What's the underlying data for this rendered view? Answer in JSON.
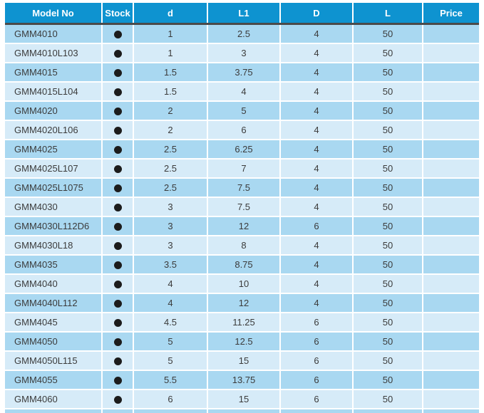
{
  "table": {
    "columns": [
      {
        "key": "model",
        "label": "Model No"
      },
      {
        "key": "stock",
        "label": "Stock"
      },
      {
        "key": "d",
        "label": "d"
      },
      {
        "key": "l1",
        "label": "L1"
      },
      {
        "key": "D",
        "label": "D"
      },
      {
        "key": "L",
        "label": "L"
      },
      {
        "key": "price",
        "label": "Price"
      }
    ],
    "stock_icon": {
      "name": "filled-circle",
      "meaning": "in-stock"
    },
    "rows": [
      {
        "model": "GMM4010",
        "stock": "in-stock",
        "d": "1",
        "l1": "2.5",
        "D": "4",
        "L": "50",
        "price": ""
      },
      {
        "model": "GMM4010L103",
        "stock": "in-stock",
        "d": "1",
        "l1": "3",
        "D": "4",
        "L": "50",
        "price": ""
      },
      {
        "model": "GMM4015",
        "stock": "in-stock",
        "d": "1.5",
        "l1": "3.75",
        "D": "4",
        "L": "50",
        "price": ""
      },
      {
        "model": "GMM4015L104",
        "stock": "in-stock",
        "d": "1.5",
        "l1": "4",
        "D": "4",
        "L": "50",
        "price": ""
      },
      {
        "model": "GMM4020",
        "stock": "in-stock",
        "d": "2",
        "l1": "5",
        "D": "4",
        "L": "50",
        "price": ""
      },
      {
        "model": "GMM4020L106",
        "stock": "in-stock",
        "d": "2",
        "l1": "6",
        "D": "4",
        "L": "50",
        "price": ""
      },
      {
        "model": "GMM4025",
        "stock": "in-stock",
        "d": "2.5",
        "l1": "6.25",
        "D": "4",
        "L": "50",
        "price": ""
      },
      {
        "model": "GMM4025L107",
        "stock": "in-stock",
        "d": "2.5",
        "l1": "7",
        "D": "4",
        "L": "50",
        "price": ""
      },
      {
        "model": "GMM4025L1075",
        "stock": "in-stock",
        "d": "2.5",
        "l1": "7.5",
        "D": "4",
        "L": "50",
        "price": ""
      },
      {
        "model": "GMM4030",
        "stock": "in-stock",
        "d": "3",
        "l1": "7.5",
        "D": "4",
        "L": "50",
        "price": ""
      },
      {
        "model": "GMM4030L112D6",
        "stock": "in-stock",
        "d": "3",
        "l1": "12",
        "D": "6",
        "L": "50",
        "price": ""
      },
      {
        "model": "GMM4030L18",
        "stock": "in-stock",
        "d": "3",
        "l1": "8",
        "D": "4",
        "L": "50",
        "price": ""
      },
      {
        "model": "GMM4035",
        "stock": "in-stock",
        "d": "3.5",
        "l1": "8.75",
        "D": "4",
        "L": "50",
        "price": ""
      },
      {
        "model": "GMM4040",
        "stock": "in-stock",
        "d": "4",
        "l1": "10",
        "D": "4",
        "L": "50",
        "price": ""
      },
      {
        "model": "GMM4040L112",
        "stock": "in-stock",
        "d": "4",
        "l1": "12",
        "D": "4",
        "L": "50",
        "price": ""
      },
      {
        "model": "GMM4045",
        "stock": "in-stock",
        "d": "4.5",
        "l1": "11.25",
        "D": "6",
        "L": "50",
        "price": ""
      },
      {
        "model": "GMM4050",
        "stock": "in-stock",
        "d": "5",
        "l1": "12.5",
        "D": "6",
        "L": "50",
        "price": ""
      },
      {
        "model": "GMM4050L115",
        "stock": "in-stock",
        "d": "5",
        "l1": "15",
        "D": "6",
        "L": "50",
        "price": ""
      },
      {
        "model": "GMM4055",
        "stock": "in-stock",
        "d": "5.5",
        "l1": "13.75",
        "D": "6",
        "L": "50",
        "price": ""
      },
      {
        "model": "GMM4060",
        "stock": "in-stock",
        "d": "6",
        "l1": "15",
        "D": "6",
        "L": "50",
        "price": ""
      }
    ],
    "partial_bottom_row_visible": true,
    "colors": {
      "header_bg": "#0e93d0",
      "header_text": "#ffffff",
      "row_dark": "#a9d8f1",
      "row_light": "#d6ebf8",
      "header_divider": "#4a4a4a",
      "cell_text": "#3b3b3b",
      "stock_dot": "#1c1c1c",
      "grid_lines": "#ffffff"
    }
  }
}
